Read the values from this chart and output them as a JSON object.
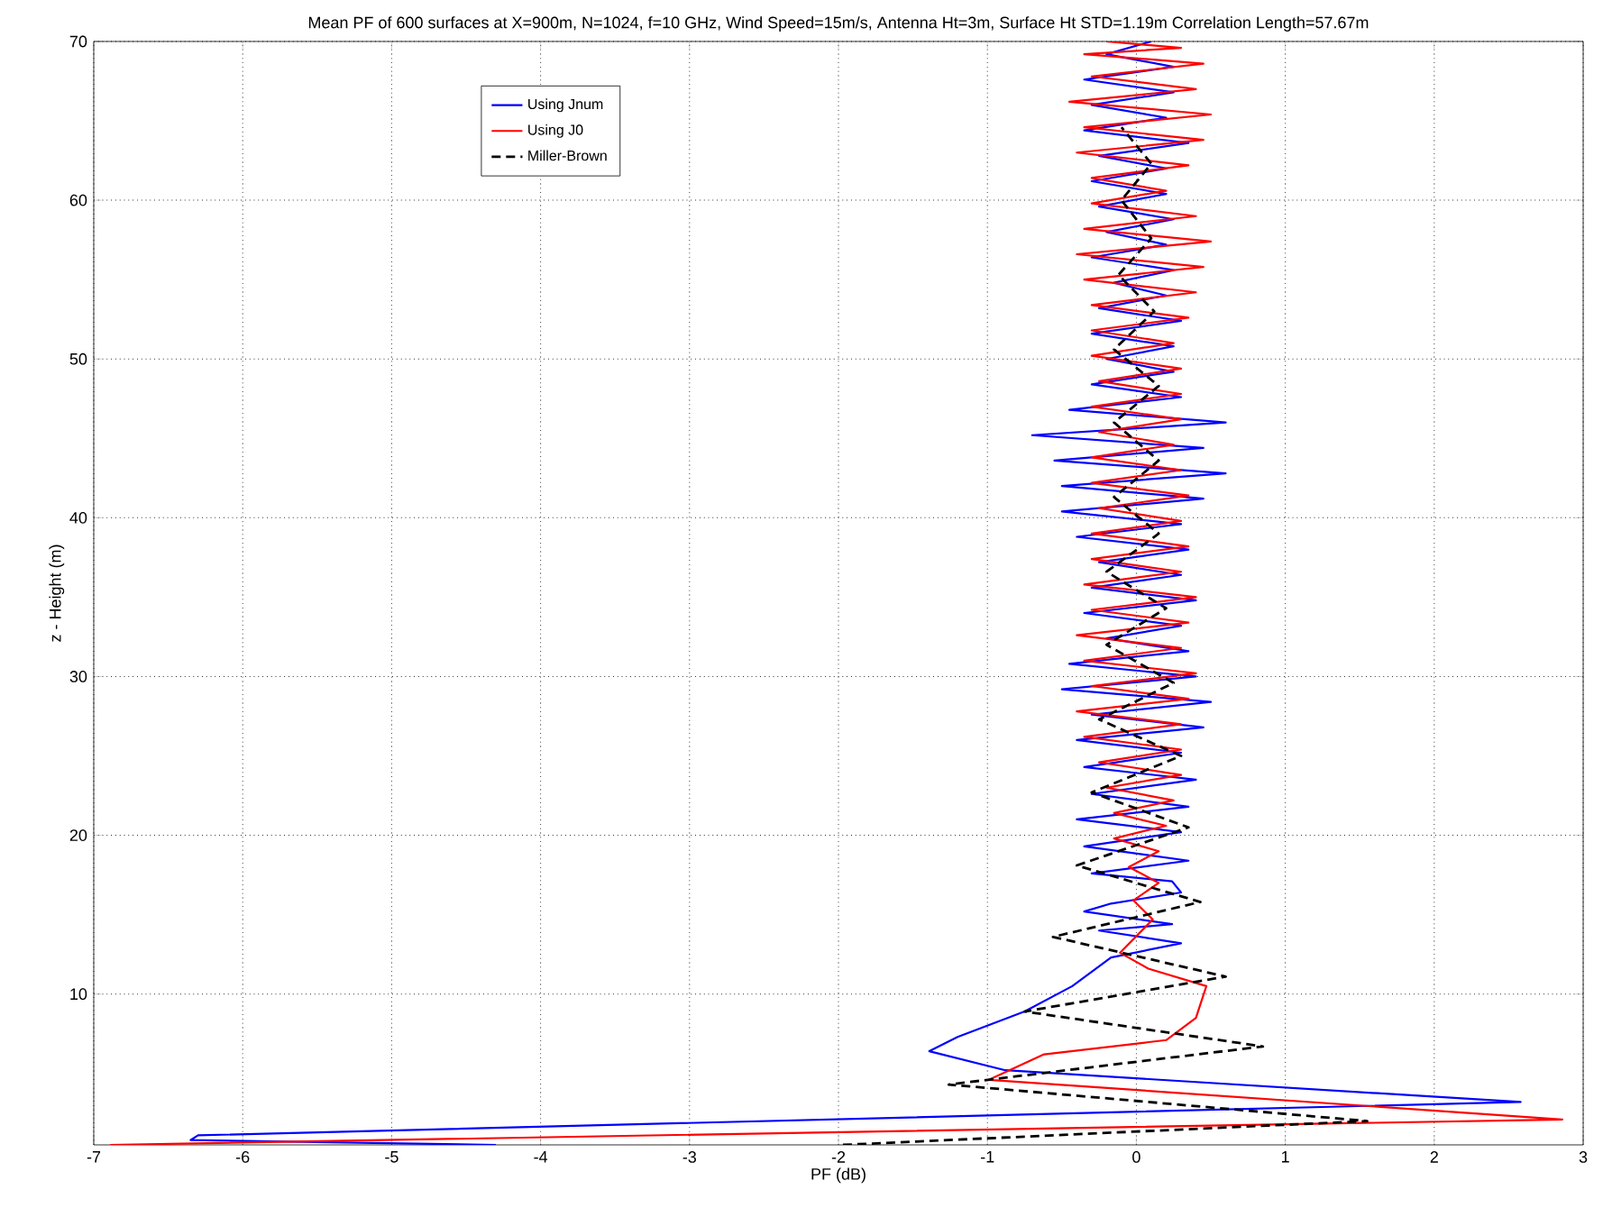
{
  "chart_data": {
    "type": "line",
    "title": "Mean PF of 600 surfaces at X=900m, N=1024, f=10 GHz, Wind Speed=15m/s, Antenna Ht=3m, Surface Ht STD=1.19m Correlation Length=57.67m",
    "xlabel": "PF (dB)",
    "ylabel": "z - Height (m)",
    "xlim": [
      -7,
      3
    ],
    "ylim": [
      0.5,
      70
    ],
    "xticks": [
      -7,
      -6,
      -5,
      -4,
      -3,
      -2,
      -1,
      0,
      1,
      2,
      3
    ],
    "yticks": [
      10,
      20,
      30,
      40,
      50,
      60,
      70
    ],
    "grid": true,
    "legend": "top left",
    "series": [
      {
        "name": "Using Jnum",
        "color": "#0000ff",
        "line_style": "solid",
        "x": [
          -4.3,
          -6.35,
          -6.3,
          2.58,
          -0.88,
          -1.39,
          -1.2,
          -0.75,
          -0.43,
          -0.17,
          0.3,
          -0.25,
          0.24,
          -0.35,
          -0.17,
          0.3,
          0.24,
          -0.3,
          0.35,
          -0.35,
          0.3,
          -0.4,
          0.35,
          -0.3,
          0.4,
          -0.35,
          0.3,
          -0.4,
          0.45,
          -0.3,
          0.5,
          -0.5,
          0.4,
          -0.45,
          0.35,
          -0.2,
          0.3,
          -0.35,
          0.4,
          -0.3,
          0.3,
          -0.25,
          0.35,
          -0.4,
          0.3,
          -0.5,
          0.45,
          -0.5,
          0.6,
          -0.55,
          0.45,
          -0.7,
          0.6,
          -0.45,
          0.3,
          -0.3,
          0.25,
          -0.2,
          0.25,
          -0.3,
          0.3,
          -0.25,
          0.2,
          -0.15,
          0.25,
          -0.3,
          0.2,
          -0.2,
          0.25,
          -0.25,
          0.2,
          -0.3,
          0.2,
          -0.25,
          0.35,
          -0.35,
          0.2,
          -0.3,
          0.25,
          -0.35,
          0.25,
          -0.2,
          0.1
        ],
        "values": [
          0.5,
          0.8,
          1.1,
          3.2,
          5.2,
          6.4,
          7.3,
          8.9,
          10.5,
          12.3,
          13.2,
          14.0,
          14.4,
          15.2,
          15.7,
          16.4,
          17.1,
          17.6,
          18.4,
          19.3,
          20.2,
          21.0,
          21.8,
          22.6,
          23.5,
          24.3,
          25.2,
          26.0,
          26.8,
          27.6,
          28.4,
          29.2,
          30.0,
          30.8,
          31.6,
          32.4,
          33.2,
          34.0,
          34.8,
          35.6,
          36.4,
          37.2,
          38.0,
          38.8,
          39.6,
          40.4,
          41.2,
          42.0,
          42.8,
          43.6,
          44.4,
          45.2,
          46.0,
          46.8,
          47.6,
          48.4,
          49.2,
          50.0,
          50.8,
          51.6,
          52.4,
          53.2,
          54.0,
          54.8,
          55.6,
          56.4,
          57.2,
          58.0,
          58.8,
          59.6,
          60.4,
          61.2,
          62.0,
          62.8,
          63.6,
          64.4,
          65.2,
          66.0,
          66.8,
          67.6,
          68.4,
          69.2,
          70
        ]
      },
      {
        "name": "Using J0",
        "color": "#ff0000",
        "line_style": "solid",
        "x": [
          -6.89,
          2.86,
          -0.99,
          -0.62,
          0.2,
          0.4,
          0.47,
          0.08,
          -0.11,
          0.11,
          -0.02,
          0.15,
          -0.05,
          0.15,
          -0.15,
          0.2,
          -0.15,
          0.25,
          -0.2,
          0.3,
          -0.25,
          0.3,
          -0.35,
          0.3,
          -0.4,
          0.35,
          -0.3,
          0.4,
          -0.35,
          0.3,
          -0.4,
          0.35,
          -0.3,
          0.4,
          -0.35,
          0.3,
          -0.3,
          0.35,
          -0.3,
          0.3,
          -0.25,
          0.35,
          -0.3,
          0.3,
          -0.3,
          0.25,
          -0.25,
          0.3,
          -0.3,
          0.3,
          -0.25,
          0.3,
          -0.3,
          0.25,
          -0.3,
          0.35,
          -0.3,
          0.4,
          -0.35,
          0.45,
          -0.4,
          0.5,
          -0.35,
          0.4,
          -0.3,
          0.2,
          -0.3,
          0.35,
          -0.4,
          0.45,
          -0.35,
          0.5,
          -0.45,
          0.4,
          -0.3,
          0.45,
          -0.35,
          0.3,
          -0.2
        ],
        "values": [
          0.5,
          2.1,
          4.6,
          6.2,
          7.1,
          8.5,
          10.5,
          11.6,
          12.6,
          14.7,
          15.9,
          17.0,
          18.0,
          19.0,
          19.8,
          20.6,
          21.4,
          22.2,
          23.0,
          23.8,
          24.6,
          25.4,
          26.2,
          27.0,
          27.8,
          28.6,
          29.4,
          30.2,
          31.0,
          31.8,
          32.6,
          33.4,
          34.2,
          35.0,
          35.8,
          36.6,
          37.4,
          38.2,
          39.0,
          39.8,
          40.6,
          41.4,
          42.2,
          43.0,
          43.8,
          44.6,
          45.4,
          46.2,
          47.0,
          47.8,
          48.6,
          49.4,
          50.2,
          51.0,
          51.8,
          52.6,
          53.4,
          54.2,
          55.0,
          55.8,
          56.6,
          57.4,
          58.2,
          59.0,
          59.8,
          60.6,
          61.4,
          62.2,
          63.0,
          63.8,
          64.6,
          65.4,
          66.2,
          67.0,
          67.8,
          68.6,
          69.2,
          69.6,
          70.0
        ]
      },
      {
        "name": "Miller-Brown",
        "color": "#000000",
        "line_style": "dashed",
        "x": [
          -1.97,
          1.55,
          -1.26,
          0.85,
          -0.75,
          0.6,
          -0.56,
          0.43,
          -0.4,
          0.35,
          -0.3,
          0.3,
          -0.25,
          0.25,
          -0.2,
          0.2,
          -0.2,
          0.15,
          -0.15,
          0.15,
          -0.15,
          0.15,
          -0.15,
          0.12,
          -0.12,
          0.1,
          -0.1,
          0.1,
          -0.1
        ],
        "values": [
          0.5,
          2.0,
          4.3,
          6.7,
          8.9,
          11.1,
          13.6,
          15.8,
          18.1,
          20.5,
          22.7,
          25.0,
          27.3,
          29.6,
          32.0,
          34.3,
          36.6,
          39.0,
          41.3,
          43.6,
          46.0,
          48.3,
          50.6,
          53.0,
          55.3,
          57.6,
          60.0,
          62.3,
          64.6
        ]
      }
    ]
  }
}
